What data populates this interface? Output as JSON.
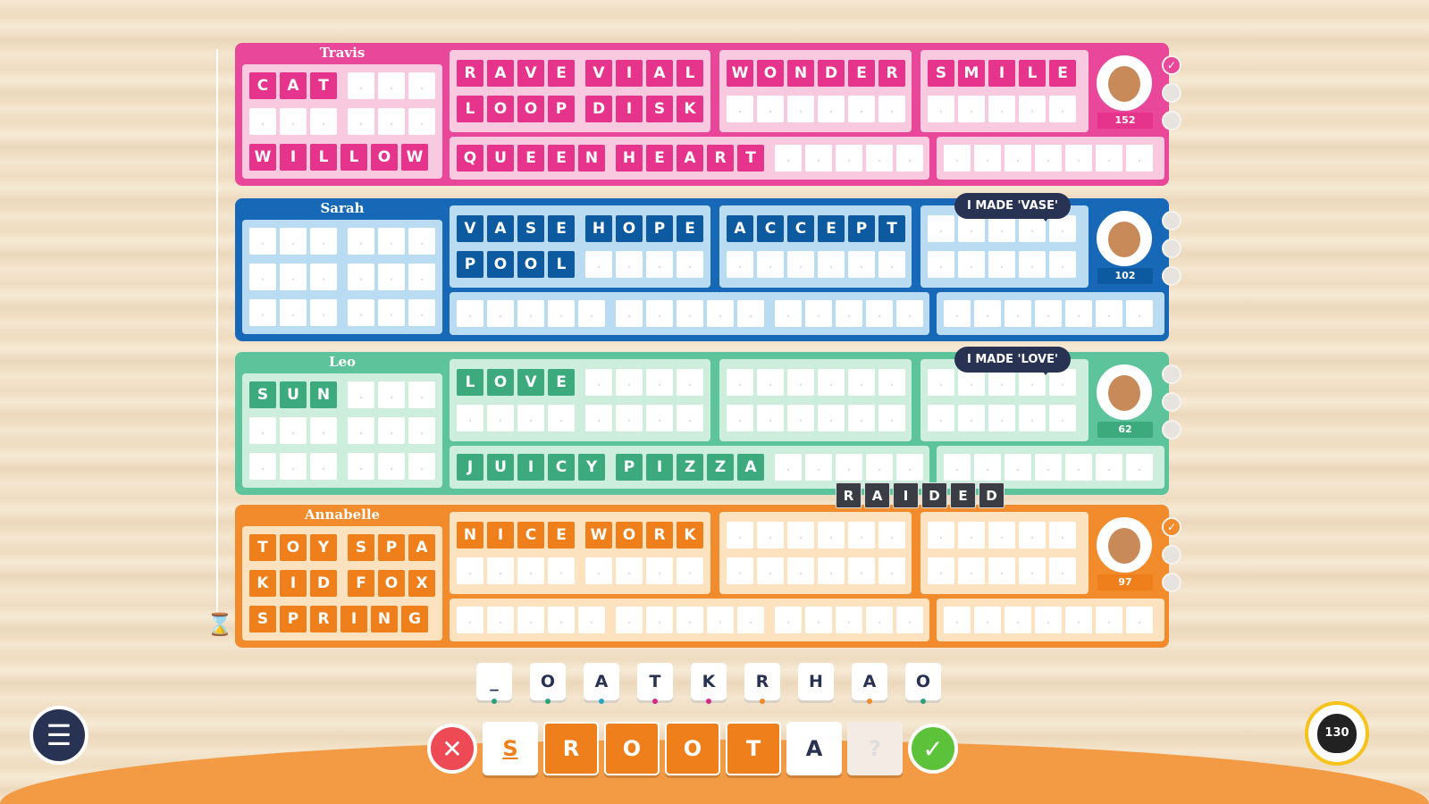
{
  "players": [
    {
      "name": "Travis",
      "score": "152",
      "bubble": "",
      "colors": {
        "border": "#e9479a",
        "inner": "#f9c9df",
        "tile": "#e6338c",
        "badge": "#e6338c"
      },
      "left": [
        "CAT|...",
        "...|...",
        "WILLOW"
      ],
      "b1": [
        "RAVE|VIAL",
        "LOOP|DISK"
      ],
      "b2": [
        "WONDER",
        "......"
      ],
      "b3": [
        "SMILE",
        "....."
      ],
      "bot1": [
        "QUEEN|HEART|....."
      ],
      "bot2": [
        ".......",
        ""
      ],
      "checks": [
        true,
        false,
        false
      ]
    },
    {
      "name": "Sarah",
      "score": "102",
      "bubble": "I MADE 'VASE'",
      "colors": {
        "border": "#1769b8",
        "inner": "#b9dcf3",
        "tile": "#0d5aa0",
        "badge": "#0d5aa0"
      },
      "left": [
        "...|...",
        "...|...",
        "...|..."
      ],
      "b1": [
        "VASE|HOPE",
        "POOL|...."
      ],
      "b2": [
        "ACCEPT",
        "......"
      ],
      "b3": [
        ".....",
        "....."
      ],
      "bot1": [
        ".....|.....|....."
      ],
      "bot2": [
        "......."
      ],
      "checks": [
        false,
        false,
        false
      ]
    },
    {
      "name": "Leo",
      "score": "62",
      "bubble": "I MADE 'LOVE'",
      "colors": {
        "border": "#5cc39a",
        "inner": "#cdeedc",
        "tile": "#3daa7e",
        "badge": "#3daa7e"
      },
      "left": [
        "SUN|...",
        "...|...",
        "...|..."
      ],
      "b1": [
        "LOVE|....",
        "....|...."
      ],
      "b2": [
        "......",
        "......"
      ],
      "b3": [
        ".....",
        "....."
      ],
      "bot1": [
        "JUICY|PIZZA|....."
      ],
      "bot2": [
        "......."
      ],
      "checks": [
        false,
        false,
        false
      ]
    },
    {
      "name": "Annabelle",
      "score": "97",
      "bubble": "",
      "colors": {
        "border": "#f28b2b",
        "inner": "#fde2c0",
        "tile": "#ef7f1a",
        "badge": "#ef7f1a"
      },
      "left": [
        "TOY|SPA",
        "KID|FOX",
        "SPRING"
      ],
      "b1": [
        "NICE|WORK",
        "....|...."
      ],
      "b2": [
        "......",
        "......"
      ],
      "b3": [
        ".....",
        "....."
      ],
      "bot1": [
        ".....|.....|....."
      ],
      "bot2": [
        "......."
      ],
      "checks": [
        true,
        false,
        false
      ]
    }
  ],
  "raided": "RAIDED",
  "rack": [
    {
      "l": "_",
      "c": "#2aa37a"
    },
    {
      "l": "O",
      "c": "#2aa37a"
    },
    {
      "l": "A",
      "c": "#2aa3c9"
    },
    {
      "l": "T",
      "c": "#d42a8a"
    },
    {
      "l": "K",
      "c": "#d42a8a"
    },
    {
      "l": "R",
      "c": "#f28b2b"
    },
    {
      "l": "H",
      "c": ""
    },
    {
      "l": "A",
      "c": "#f28b2b"
    },
    {
      "l": "O",
      "c": "#2aa37a"
    }
  ],
  "answer": [
    {
      "l": "S",
      "style": "blank"
    },
    {
      "l": "R",
      "style": "orange"
    },
    {
      "l": "O",
      "style": "orange"
    },
    {
      "l": "O",
      "style": "orange"
    },
    {
      "l": "T",
      "style": "orange"
    },
    {
      "l": "A",
      "style": "white"
    },
    {
      "l": "?",
      "style": "faded"
    }
  ],
  "buttons": {
    "clear": "✕",
    "submit": "✓",
    "menu": "☰"
  },
  "bag": "130",
  "icons": [
    "hourglass-icon",
    "menu-icon",
    "bag-icon",
    "check-icon",
    "clear-icon"
  ]
}
